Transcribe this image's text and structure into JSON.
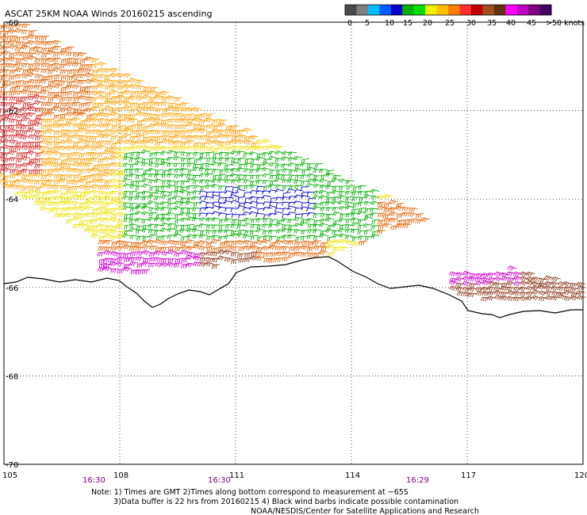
{
  "title": "ASCAT 25KM NOAA Winds 20160215 ascending",
  "legend": {
    "units": "knots",
    "swatches": [
      {
        "color": "#4a4a4a"
      },
      {
        "color": "#7f7f7f"
      },
      {
        "color": "#00bfff"
      },
      {
        "color": "#0060ff"
      },
      {
        "color": "#0000cc"
      },
      {
        "color": "#00b000"
      },
      {
        "color": "#00e000"
      },
      {
        "color": "#f0f000"
      },
      {
        "color": "#ffc000"
      },
      {
        "color": "#ff8000"
      },
      {
        "color": "#ff3030"
      },
      {
        "color": "#c00000"
      },
      {
        "color": "#a05020"
      },
      {
        "color": "#603010"
      },
      {
        "color": "#ff00ff"
      },
      {
        "color": "#c000c0"
      },
      {
        "color": "#800080"
      },
      {
        "color": "#400060"
      }
    ],
    "labels": [
      "0",
      "5",
      "10",
      "15",
      "20",
      "25",
      "30",
      "35",
      "40",
      "45",
      ">50 knots"
    ]
  },
  "map": {
    "lon_ticks": [
      "105",
      "108",
      "111",
      "114",
      "117",
      "120"
    ],
    "lat_ticks": [
      "-60",
      "-62",
      "-64",
      "-66",
      "-68",
      "-70"
    ],
    "lon_range": [
      105,
      120
    ],
    "lat_range": [
      -60,
      -70
    ],
    "gridlines": true,
    "coastline_color": "#000000"
  },
  "pass_times": [
    "16:30",
    "16:30",
    "16:29"
  ],
  "notes": {
    "line1": "Note: 1) Times are GMT 2)Times along bottom correspond to measurement at ~65S",
    "line2": "3)Data buffer is 22 hrs from 20160215 4) Black wind barbs indicate possible contamination",
    "line3": "NOAA/NESDIS/Center for Satellite Applications and Research"
  },
  "wind_colors": {
    "low": "#0000cc",
    "green": "#00b000",
    "yellow": "#f0e000",
    "orange": "#ffa000",
    "darkorange": "#e06000",
    "red": "#d02020",
    "brown": "#8b3a1a",
    "magenta": "#d000d0"
  }
}
